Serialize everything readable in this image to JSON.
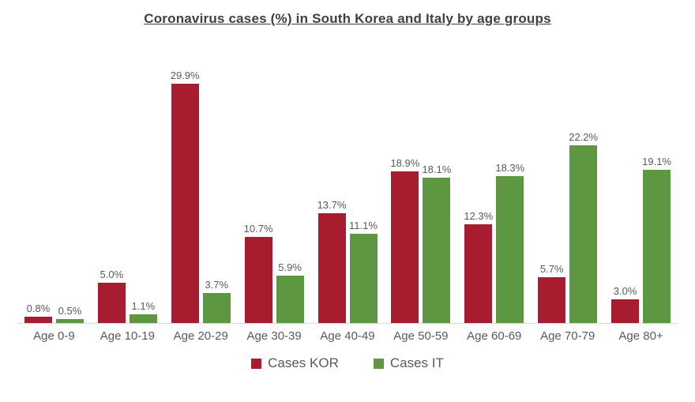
{
  "title": "Coronavirus cases (%) in South Korea and Italy by age groups",
  "chart_data": {
    "type": "bar",
    "categories": [
      "Age 0-9",
      "Age 10-19",
      "Age 20-29",
      "Age 30-39",
      "Age 40-49",
      "Age 50-59",
      "Age 60-69",
      "Age 70-79",
      "Age 80+"
    ],
    "series": [
      {
        "name": "Cases KOR",
        "color": "#a81c30",
        "values": [
          0.8,
          5.0,
          29.9,
          10.7,
          13.7,
          18.9,
          12.3,
          5.7,
          3.0
        ]
      },
      {
        "name": "Cases IT",
        "color": "#5e9741",
        "values": [
          0.5,
          1.1,
          3.7,
          5.9,
          11.1,
          18.1,
          18.3,
          22.2,
          19.1
        ]
      }
    ],
    "value_suffix": "%",
    "data_labels": true,
    "grid": false,
    "y_axis_visible": false,
    "ylim": [
      0,
      35
    ],
    "legend_position": "bottom",
    "axis_line_color": "#d9d9d9",
    "label_color": "#595959",
    "title_color": "#404040"
  },
  "legend": {
    "items": [
      {
        "label": "Cases KOR",
        "color": "#a81c30"
      },
      {
        "label": "Cases IT",
        "color": "#5e9741"
      }
    ]
  }
}
